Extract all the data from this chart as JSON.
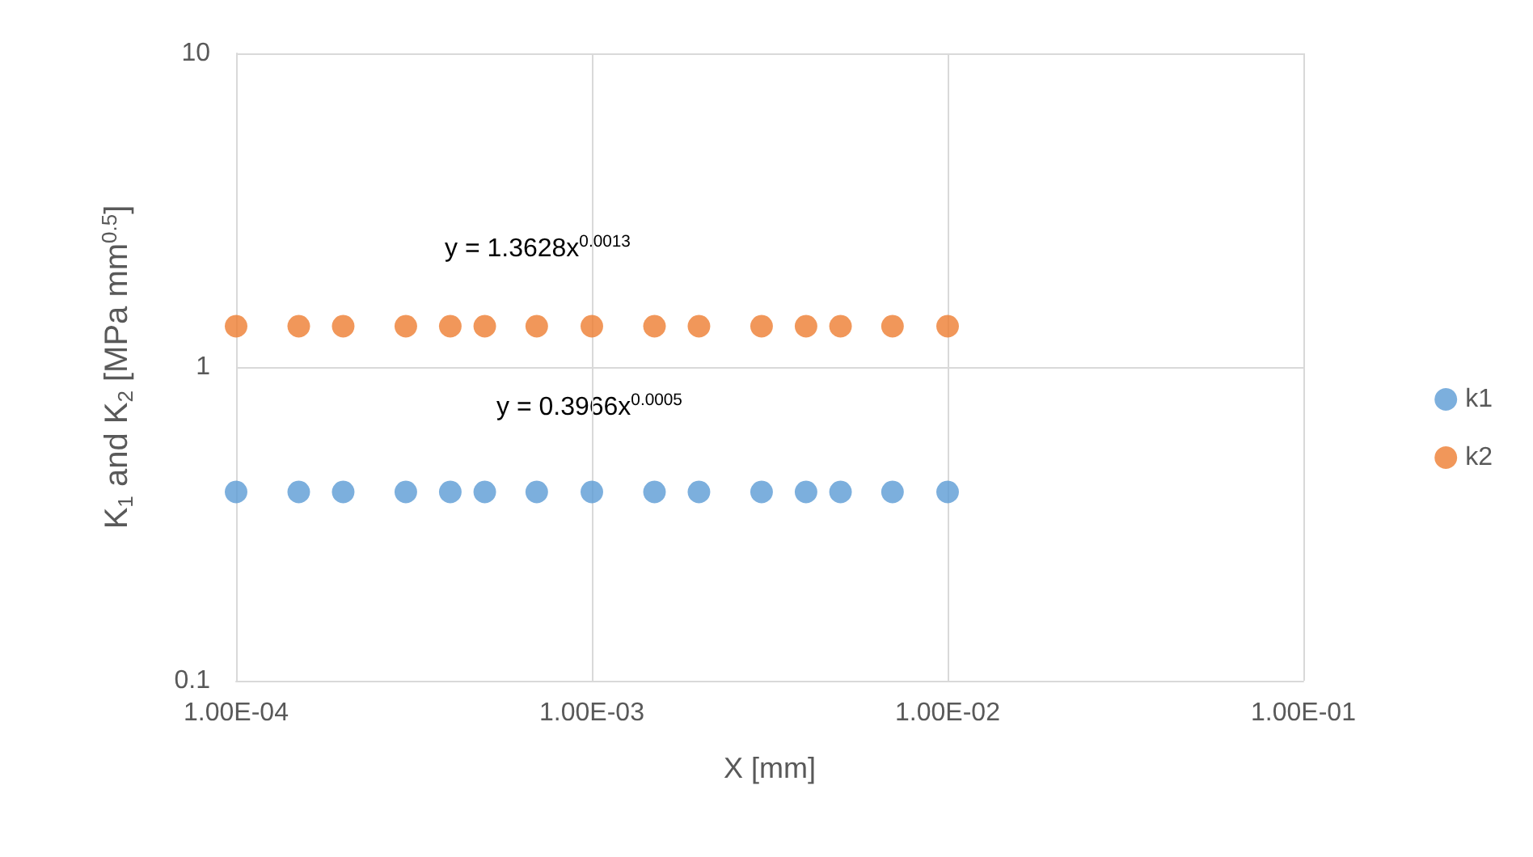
{
  "chart_data": {
    "type": "scatter",
    "xlabel": "X [mm]",
    "ylabel": "K$_{1}$ and K$_{2}$ [MPa mm$^{0.5}$]",
    "x": [
      0.0001,
      0.00015,
      0.0002,
      0.0003,
      0.0004,
      0.0005,
      0.0007,
      0.001,
      0.0015,
      0.002,
      0.003,
      0.004,
      0.005,
      0.007,
      0.01
    ],
    "series": [
      {
        "name": "k1",
        "color": "#5b9bd5",
        "values": [
          0.4,
          0.4,
          0.4,
          0.4,
          0.4,
          0.4,
          0.4,
          0.4,
          0.4,
          0.4,
          0.4,
          0.4,
          0.4,
          0.4,
          0.4
        ]
      },
      {
        "name": "k2",
        "color": "#ed7d31",
        "values": [
          1.35,
          1.35,
          1.35,
          1.35,
          1.35,
          1.35,
          1.35,
          1.35,
          1.35,
          1.35,
          1.35,
          1.35,
          1.35,
          1.35,
          1.35
        ]
      }
    ],
    "annotations": [
      "y = 1.3628x$^{0.0013}$",
      "y = 0.3966x$^{0.0005}$"
    ],
    "xlim": [
      0.0001,
      0.1
    ],
    "ylim": [
      0.1,
      10
    ],
    "xticks": [
      {
        "value": 0.0001,
        "label": "1.00E-04"
      },
      {
        "value": 0.001,
        "label": "1.00E-03"
      },
      {
        "value": 0.01,
        "label": "1.00E-02"
      },
      {
        "value": 0.1,
        "label": "1.00E-01"
      }
    ],
    "yticks": [
      0.1,
      1,
      10
    ],
    "log": "xy",
    "grid": true,
    "legend": "right",
    "marker": "circle"
  }
}
